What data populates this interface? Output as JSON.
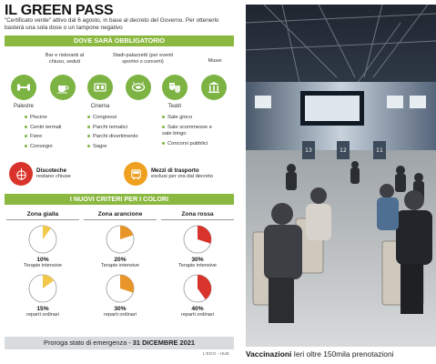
{
  "title": "IL GREEN PASS",
  "subtitle": "\"Certificato verde\" attivo dal 6 agosto, in base al decreto del Governo. Per ottenerlo basterà una sola dose o un tampone negativo",
  "section1_title": "DOVE SARÀ OBBLIGATORIO",
  "venues_top": [
    {
      "label": "Bar e ristoranti al chiuso, seduti",
      "icon": "coffee-cup-icon"
    },
    {
      "label": "Stadi-palazzetti (per eventi sportivi o concerti)",
      "icon": "stadium-icon"
    },
    {
      "label": "Musei",
      "icon": "museum-icon"
    }
  ],
  "venues": [
    {
      "name": "Palestre",
      "icon": "dumbbell-icon"
    },
    {
      "name": "",
      "icon": "coffee-cup-icon"
    },
    {
      "name": "Cinema",
      "icon": "film-icon"
    },
    {
      "name": "",
      "icon": "stadium-icon"
    },
    {
      "name": "Teatri",
      "icon": "theater-masks-icon"
    },
    {
      "name": "",
      "icon": "museum-icon"
    }
  ],
  "bullets_col1": [
    "Piscine",
    "Centri termali",
    "Fiere",
    "Convegni"
  ],
  "bullets_col2": [
    "Congressi",
    "Parchi tematici",
    "Parchi divertimento",
    "Sagre"
  ],
  "bullets_col3": [
    "Sale gioco",
    "Sale scommesse e sale bingo",
    "Concorsi pubblici"
  ],
  "closed1": {
    "title": "Discoteche",
    "text": "restano chiuse",
    "icon": "disco-ball-icon",
    "color": "#d9342b"
  },
  "closed2": {
    "title": "Mezzi di trasporto",
    "text": "esclusi per ora dal decreto",
    "icon": "bus-icon",
    "color": "#f0a020"
  },
  "section2_title": "I NUOVI CRITERI PER I COLORI",
  "zones": [
    {
      "name": "Zona gialla",
      "color": "#f2c84b",
      "rows": [
        {
          "pct": "10%",
          "label": "Terapie intensive",
          "value": 10
        },
        {
          "pct": "15%",
          "label": "reparti ordinari",
          "value": 15
        }
      ]
    },
    {
      "name": "Zona arancione",
      "color": "#e8962a",
      "rows": [
        {
          "pct": "20%",
          "label": "Terapie intensive",
          "value": 20
        },
        {
          "pct": "30%",
          "label": "reparti ordinari",
          "value": 30
        }
      ]
    },
    {
      "name": "Zona rossa",
      "color": "#d9342b",
      "rows": [
        {
          "pct": "30%",
          "label": "Terapie intensive",
          "value": 30
        },
        {
          "pct": "40%",
          "label": "reparti ordinari",
          "value": 40
        }
      ]
    }
  ],
  "footer": {
    "label": "Proroga stato di emergenza - ",
    "date": "31 DICEMBRE 2021"
  },
  "credit": "L'EGO - HUB",
  "caption": {
    "bold": "Vaccinazioni",
    "text": " Ieri oltre 150mila prenotazioni"
  },
  "photo_booths": [
    "13",
    "12",
    "11"
  ],
  "colors": {
    "green": "#8bb840",
    "icon_green": "#7cb342",
    "footer_gray": "#d9dcdf"
  }
}
